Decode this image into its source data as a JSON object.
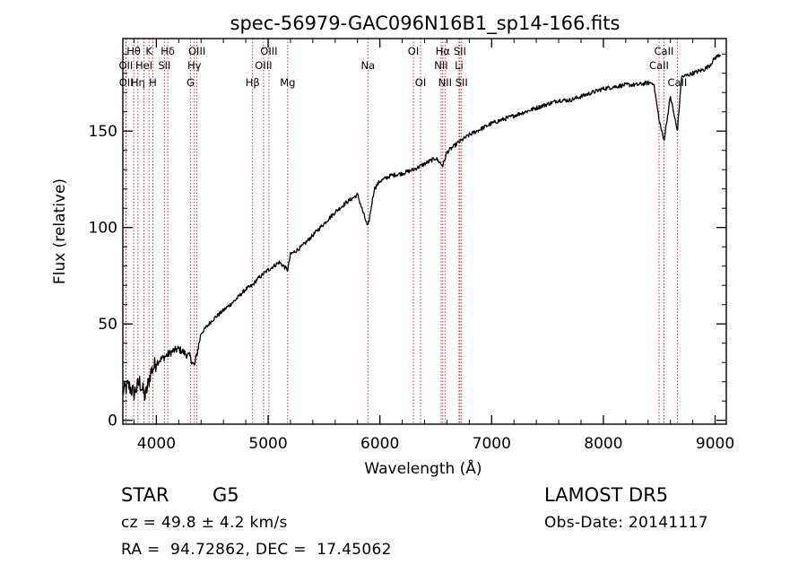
{
  "chart_data": {
    "type": "line",
    "title": "spec-56979-GAC096N16B1_sp14-166.fits",
    "xlabel": "Wavelength (Å)",
    "ylabel": "Flux (relative)",
    "xlim": [
      3700,
      9100
    ],
    "ylim": [
      -2,
      198
    ],
    "xticks": [
      4000,
      5000,
      6000,
      7000,
      8000,
      9000
    ],
    "yticks": [
      0,
      50,
      100,
      150
    ],
    "grid": false,
    "series": [
      {
        "x": [
          3700,
          3750,
          3800,
          3850,
          3900,
          3950,
          4000,
          4050,
          4100,
          4150,
          4200,
          4250,
          4300,
          4340,
          4400,
          4500,
          4600,
          4700,
          4800,
          4861,
          4900,
          5000,
          5100,
          5175,
          5200,
          5300,
          5400,
          5500,
          5600,
          5700,
          5800,
          5893,
          5950,
          6000,
          6100,
          6200,
          6300,
          6400,
          6500,
          6563,
          6600,
          6700,
          6800,
          6900,
          7000,
          7100,
          7200,
          7300,
          7400,
          7500,
          7600,
          7700,
          7800,
          7900,
          8000,
          8100,
          8200,
          8300,
          8400,
          8450,
          8498,
          8542,
          8600,
          8662,
          8700,
          8800,
          8900,
          8950,
          9000,
          9050
        ],
        "y": [
          15,
          18,
          14,
          20,
          12,
          25,
          30,
          32,
          34,
          36,
          37,
          35,
          33,
          28,
          45,
          52,
          57,
          62,
          68,
          70,
          73,
          78,
          82,
          78,
          86,
          90,
          96,
          102,
          108,
          113,
          117,
          100,
          120,
          124,
          127,
          128,
          130,
          133,
          136,
          132,
          139,
          144,
          148,
          151,
          154,
          156,
          158,
          160,
          162,
          164,
          166,
          166,
          168,
          170,
          172,
          173,
          174,
          174,
          175,
          175,
          156,
          145,
          168,
          150,
          178,
          180,
          182,
          184,
          188,
          190
        ]
      }
    ],
    "lines": [
      {
        "label": "Hθ",
        "x": 3797,
        "row": 0
      },
      {
        "label": "K",
        "x": 3934,
        "row": 0
      },
      {
        "label": "Hδ",
        "x": 4102,
        "row": 0
      },
      {
        "label": "OIII",
        "x": 4363,
        "row": 0
      },
      {
        "label": "OIII",
        "x": 5007,
        "row": 0
      },
      {
        "label": "OI",
        "x": 6300,
        "row": 0
      },
      {
        "label": "Hα",
        "x": 6563,
        "row": 0
      },
      {
        "label": "SII",
        "x": 6716,
        "row": 0
      },
      {
        "label": "CaII",
        "x": 8542,
        "row": 0
      },
      {
        "label": "OII",
        "x": 3727,
        "row": 1
      },
      {
        "label": "HeI",
        "x": 3889,
        "row": 1
      },
      {
        "label": "SII",
        "x": 4072,
        "row": 1
      },
      {
        "label": "Hγ",
        "x": 4340,
        "row": 1
      },
      {
        "label": "OIII",
        "x": 4959,
        "row": 1
      },
      {
        "label": "Na",
        "x": 5893,
        "row": 1
      },
      {
        "label": "NII",
        "x": 6548,
        "row": 1
      },
      {
        "label": "Li",
        "x": 6708,
        "row": 1
      },
      {
        "label": "CaII",
        "x": 8498,
        "row": 1
      },
      {
        "label": "OII",
        "x": 3729,
        "row": 2
      },
      {
        "label": "Hη",
        "x": 3835,
        "row": 2
      },
      {
        "label": "H",
        "x": 3968,
        "row": 2
      },
      {
        "label": "G",
        "x": 4305,
        "row": 2
      },
      {
        "label": "Hβ",
        "x": 4861,
        "row": 2
      },
      {
        "label": "Mg",
        "x": 5175,
        "row": 2
      },
      {
        "label": "OI",
        "x": 6364,
        "row": 2
      },
      {
        "label": "NII",
        "x": 6583,
        "row": 2
      },
      {
        "label": "SII",
        "x": 6731,
        "row": 2
      },
      {
        "label": "CaII",
        "x": 8662,
        "row": 2
      }
    ]
  },
  "info": {
    "object_class": "STAR",
    "subclass": "G5",
    "survey": "LAMOST DR5",
    "cz": "cz = 49.8 ± 4.2 km/s",
    "obs_date": "Obs-Date: 20141117",
    "coords": "RA =  94.72862, DEC =  17.45062"
  }
}
